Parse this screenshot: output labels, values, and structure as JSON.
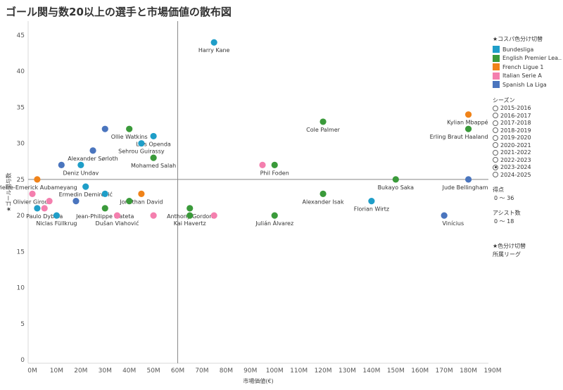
{
  "title": "ゴール関与数20以上の選手と市場価値の散布図",
  "legend": {
    "color_header": "★コスパ色分け切替",
    "leagues": [
      {
        "name": "Bundesliga",
        "color": "#1F9EC8"
      },
      {
        "name": "English Premier Lea..",
        "color": "#3A9A3A"
      },
      {
        "name": "French Ligue 1",
        "color": "#F08319"
      },
      {
        "name": "Italian Serie A",
        "color": "#F47FAE"
      },
      {
        "name": "Spanish La Liga",
        "color": "#4A75BE"
      }
    ],
    "season_header": "シーズン",
    "seasons": [
      "2015-2016",
      "2016-2017",
      "2017-2018",
      "2018-2019",
      "2019-2020",
      "2020-2021",
      "2021-2022",
      "2022-2023",
      "2023-2024",
      "2024-2025"
    ],
    "selected_season": "2023-2024",
    "goals_header": "得点",
    "goals_range": "0 〜 36",
    "assists_header": "アシスト数",
    "assists_range": "0 〜 18",
    "switch_header": "★色分け切替",
    "switch_value": "所属リーグ"
  },
  "chart_data": {
    "type": "scatter",
    "title": "ゴール関与数20以上の選手と市場価値の散布図",
    "xlabel": "市場価値(€)",
    "ylabel": "★ゴール関与数",
    "xlim": [
      0,
      190
    ],
    "ylim": [
      0,
      45
    ],
    "x_unit": "M",
    "x_ticks": [
      "0M",
      "10M",
      "20M",
      "30M",
      "40M",
      "50M",
      "60M",
      "70M",
      "80M",
      "90M",
      "100M",
      "110M",
      "120M",
      "130M",
      "140M",
      "150M",
      "160M",
      "170M",
      "180M",
      "190M"
    ],
    "y_ticks": [
      "0",
      "5",
      "10",
      "15",
      "20",
      "25",
      "30",
      "35",
      "40",
      "45"
    ],
    "reference_lines": {
      "x": 60,
      "y": 25
    },
    "points": [
      {
        "label": "Harry Kane",
        "x": 75,
        "y": 44,
        "league": "Bundesliga"
      },
      {
        "label": "Kylian Mbappé",
        "x": 180,
        "y": 34,
        "league": "French Ligue 1"
      },
      {
        "label": "Cole Palmer",
        "x": 120,
        "y": 33,
        "league": "English Premier Lea.."
      },
      {
        "label": "Erling Braut Haaland",
        "x": 180,
        "y": 32,
        "league": "English Premier Lea.."
      },
      {
        "label": "",
        "x": 30,
        "y": 32,
        "league": "Spanish La Liga"
      },
      {
        "label": "Ollie Watkins",
        "x": 40,
        "y": 32,
        "league": "English Premier Lea.."
      },
      {
        "label": "Loïs Openda",
        "x": 50,
        "y": 31,
        "league": "Bundesliga"
      },
      {
        "label": "Sehrou Guirassy",
        "x": 45,
        "y": 30,
        "league": "Bundesliga"
      },
      {
        "label": "Alexander Sørloth",
        "x": 25,
        "y": 29,
        "league": "Spanish La Liga"
      },
      {
        "label": "Mohamed Salah",
        "x": 50,
        "y": 28,
        "league": "English Premier Lea.."
      },
      {
        "label": "Deniz Undav",
        "x": 20,
        "y": 27,
        "league": "Bundesliga"
      },
      {
        "label": "",
        "x": 12,
        "y": 27,
        "league": "Spanish La Liga"
      },
      {
        "label": "Phil Foden",
        "x": 100,
        "y": 27,
        "league": "English Premier Lea.."
      },
      {
        "label": "",
        "x": 95,
        "y": 27,
        "league": "Italian Serie A"
      },
      {
        "label": "Pierre-Emerick Aubameyang",
        "x": 2,
        "y": 25,
        "league": "French Ligue 1"
      },
      {
        "label": "Bukayo Saka",
        "x": 150,
        "y": 25,
        "league": "English Premier Lea.."
      },
      {
        "label": "Jude Bellingham",
        "x": 180,
        "y": 25,
        "league": "Spanish La Liga"
      },
      {
        "label": "Ermedin Demirović",
        "x": 22,
        "y": 24,
        "league": "Bundesliga"
      },
      {
        "label": "Olivier Giroud",
        "x": 0,
        "y": 23,
        "league": "Italian Serie A"
      },
      {
        "label": "",
        "x": 30,
        "y": 23,
        "league": "Bundesliga"
      },
      {
        "label": "Jonathan David",
        "x": 45,
        "y": 23,
        "league": "French Ligue 1"
      },
      {
        "label": "Alexander Isak",
        "x": 120,
        "y": 23,
        "league": "English Premier Lea.."
      },
      {
        "label": "",
        "x": 7,
        "y": 22,
        "league": "Italian Serie A"
      },
      {
        "label": "",
        "x": 18,
        "y": 22,
        "league": "Spanish La Liga"
      },
      {
        "label": "",
        "x": 40,
        "y": 22,
        "league": "English Premier Lea.."
      },
      {
        "label": "Florian Wirtz",
        "x": 140,
        "y": 22,
        "league": "Bundesliga"
      },
      {
        "label": "",
        "x": 2,
        "y": 21,
        "league": "Bundesliga"
      },
      {
        "label": "Paulo Dybala",
        "x": 5,
        "y": 21,
        "league": "Italian Serie A"
      },
      {
        "label": "Jean-Philippe Mateta",
        "x": 30,
        "y": 21,
        "league": "English Premier Lea.."
      },
      {
        "label": "Anthony Gordon",
        "x": 65,
        "y": 21,
        "league": "English Premier Lea.."
      },
      {
        "label": "Niclas Füllkrug",
        "x": 10,
        "y": 20,
        "league": "Bundesliga"
      },
      {
        "label": "Dušan Vlahović",
        "x": 35,
        "y": 20,
        "league": "Italian Serie A"
      },
      {
        "label": "",
        "x": 50,
        "y": 20,
        "league": "Italian Serie A"
      },
      {
        "label": "Kai Havertz",
        "x": 65,
        "y": 20,
        "league": "English Premier Lea.."
      },
      {
        "label": "",
        "x": 75,
        "y": 20,
        "league": "Italian Serie A"
      },
      {
        "label": "Julián Álvarez",
        "x": 100,
        "y": 20,
        "league": "English Premier Lea.."
      },
      {
        "label": "Vinícius",
        "x": 170,
        "y": 20,
        "league": "Spanish La Liga"
      }
    ]
  }
}
